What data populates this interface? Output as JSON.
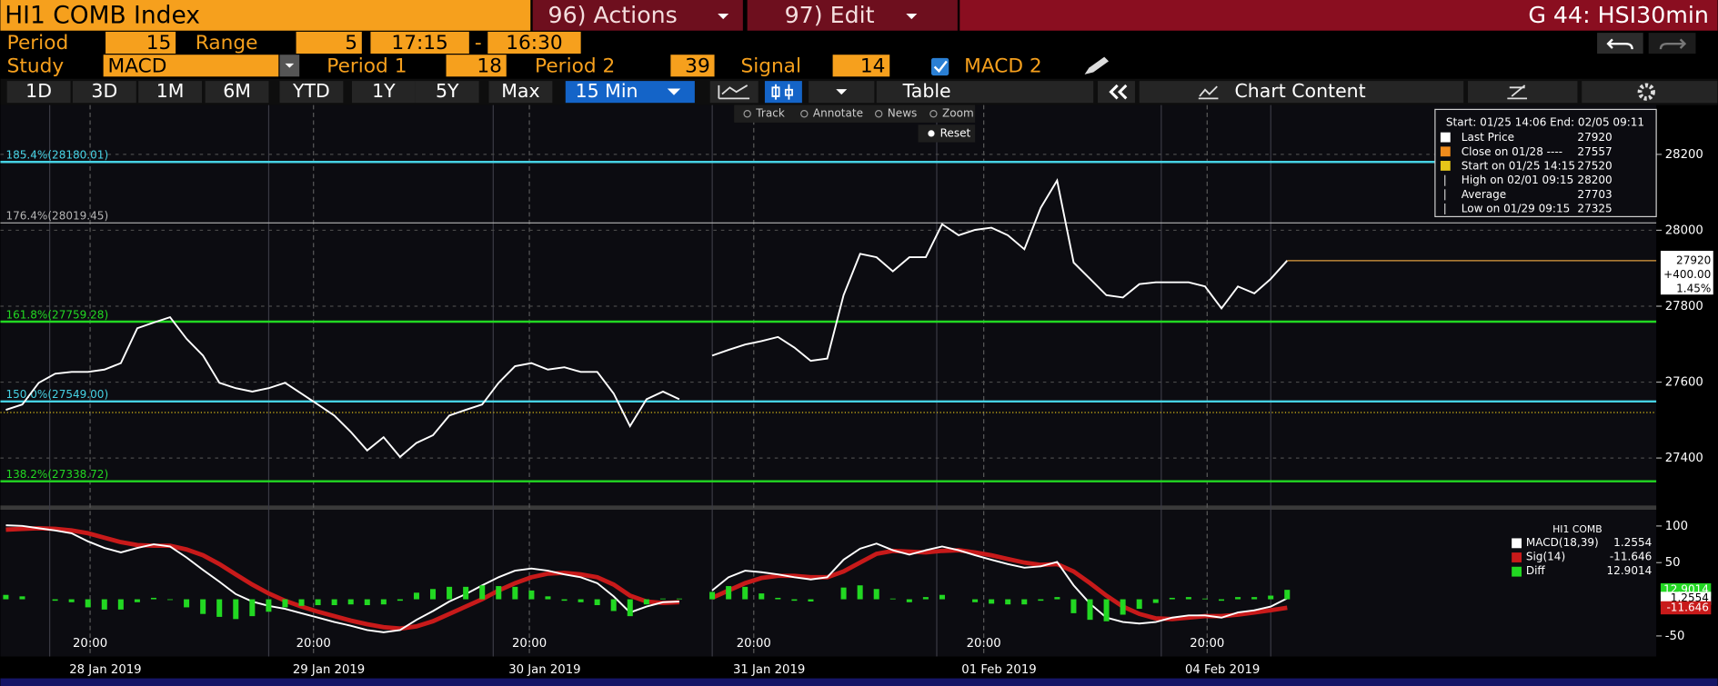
{
  "header": {
    "security": "HI1 COMB Index",
    "actions": "96) Actions",
    "edit": "97) Edit",
    "page": "G 44: HSI30min"
  },
  "settings": {
    "period_label": "Period",
    "period": "15",
    "range_label": "Range",
    "range": "5",
    "start_time": "17:15",
    "dash": "-",
    "end_time": "16:30",
    "study_label": "Study",
    "study": "MACD",
    "period1_label": "Period 1",
    "period1": "18",
    "period2_label": "Period 2",
    "period2": "39",
    "signal_label": "Signal",
    "signal": "14",
    "macd2": "MACD 2"
  },
  "tabs": [
    "1D",
    "3D",
    "1M",
    "6M",
    "YTD",
    "1Y",
    "5Y",
    "Max"
  ],
  "interval": "15 Min",
  "table_button": "Table",
  "chart_content": "Chart Content",
  "chart_tools": [
    "Track",
    "Annotate",
    "News",
    "Zoom"
  ],
  "reset": "Reset",
  "price_legend": {
    "title": "Start: 01/25 14:06 End: 02/05 09:11",
    "items": [
      {
        "label": "Last Price",
        "value": "27920",
        "color": "#ffffff"
      },
      {
        "label": "Close on 01/28 ----",
        "value": "27557",
        "color": "#f08c1c"
      },
      {
        "label": "Start on 01/25 14:15",
        "value": "27520",
        "color": "#e6c619"
      },
      {
        "label": "High on 02/01 09:15",
        "value": "28200"
      },
      {
        "label": "Average",
        "value": "27703"
      },
      {
        "label": "Low on 01/29 09:15",
        "value": "27325"
      }
    ]
  },
  "chart_data": [
    {
      "type": "line",
      "color": "#ffffff",
      "values": [
        27527,
        27541,
        27598,
        27622,
        27627,
        27627,
        27633,
        27650,
        27742,
        27757,
        27771,
        27714,
        27670,
        27598,
        27584,
        27575,
        27584,
        27598,
        27570,
        27541,
        27512,
        27469,
        27420,
        27455,
        27403,
        27440,
        27460,
        27512,
        27527,
        27541,
        27598,
        27642,
        27650,
        27633,
        27639,
        27627,
        27627,
        27570,
        27484,
        27555,
        27575,
        27555,
        null,
        27670,
        27685,
        27699,
        27708,
        27719,
        27691,
        27656,
        27662,
        27829,
        27938,
        27929,
        27892,
        27929,
        27929,
        28016,
        27987,
        28001,
        28007,
        27987,
        27950,
        28059,
        28131,
        27915,
        27872,
        27829,
        27823,
        27858,
        27863,
        27863,
        27863,
        27852,
        27794,
        27852,
        27834,
        27872,
        27920
      ],
      "ylim": [
        27275,
        28330
      ],
      "yticks": [
        27400,
        27600,
        27800,
        28000,
        28200
      ],
      "grid": true,
      "xlim": [
        -0.33,
        100.47
      ],
      "xticks": [
        {
          "value": 5.13,
          "label": "20:00"
        },
        {
          "value": 18.73,
          "label": "20:00"
        },
        {
          "value": 31.87,
          "label": "20:00"
        },
        {
          "value": 45.53,
          "label": "20:00"
        },
        {
          "value": 59.53,
          "label": "20:00"
        },
        {
          "value": 73.13,
          "label": "20:00"
        }
      ],
      "xtick_dates": [
        "28 Jan 2019",
        "29 Jan 2019",
        "30 Jan 2019",
        "31 Jan 2019",
        "01 Feb 2019",
        "04 Feb 2019"
      ],
      "levels": [
        {
          "label": "185.4%(28180.01)",
          "value": 28180.01,
          "color": "#46d2e4"
        },
        {
          "label": "176.4%(28019.45)",
          "value": 28019.45,
          "color": "#b4b4b4"
        },
        {
          "label": "161.8%(27759.28)",
          "value": 27759.28,
          "color": "#22d822"
        },
        {
          "label": "150.0%(27549.00)",
          "value": 27549.0,
          "color": "#46d2e4"
        },
        {
          "label": "138.2%(27338.72)",
          "value": 27338.72,
          "color": "#22d822"
        }
      ],
      "start_value": 27520,
      "last_value": 27920,
      "last_labels": [
        "27920",
        "+400.00",
        "1.45%"
      ]
    },
    {
      "type": "macd",
      "title": "HI1 COMB",
      "ylim": [
        -78,
        122
      ],
      "yticks": [
        -50,
        50,
        100
      ],
      "xlim": [
        -0.33,
        100.47
      ],
      "series": [
        {
          "name": "Sig(14)",
          "color": "#c81a1a",
          "legend_value": "-11.646",
          "values": [
            95,
            96,
            97,
            96,
            94,
            90,
            84,
            78,
            74,
            73,
            73,
            68,
            60,
            48,
            34,
            20,
            8,
            -2,
            -10,
            -17,
            -23,
            -29,
            -34,
            -38,
            -40,
            -37,
            -30,
            -20,
            -10,
            0,
            12,
            22,
            30,
            35,
            36,
            34,
            30,
            20,
            5,
            -3,
            -5,
            -4,
            null,
            2,
            12,
            22,
            29,
            32,
            32,
            30,
            30,
            38,
            50,
            62,
            66,
            65,
            64,
            66,
            67,
            64,
            60,
            55,
            50,
            47,
            48,
            38,
            22,
            5,
            -10,
            -20,
            -26,
            -27,
            -25,
            -23,
            -23,
            -21,
            -18,
            -15,
            -11.646
          ]
        },
        {
          "name": "MACD(18,39)",
          "color": "#ffffff",
          "legend_value": "1.2554",
          "values": [
            101,
            100,
            97,
            94,
            90,
            79,
            70,
            64,
            70,
            75,
            72,
            57,
            40,
            24,
            7,
            -3,
            -9,
            -13,
            -19,
            -25,
            -31,
            -36,
            -42,
            -45,
            -42,
            -28,
            -16,
            -3,
            7,
            19,
            30,
            39,
            42,
            39,
            34,
            30,
            22,
            4,
            -18,
            -10,
            -4,
            -3,
            null,
            12,
            30,
            39,
            37,
            34,
            30,
            27,
            30,
            54,
            69,
            76,
            67,
            61,
            67,
            72,
            67,
            60,
            54,
            48,
            43,
            45,
            51,
            19,
            -6,
            -25,
            -31,
            -33,
            -31,
            -25,
            -22,
            -22,
            -25,
            -18,
            -15,
            -10,
            1.2554
          ]
        },
        {
          "name": "Diff",
          "color": "#22d822",
          "style": "bar",
          "legend_value": "12.9014",
          "values": [
            6,
            4,
            0,
            -2,
            -4,
            -11,
            -14,
            -14,
            -4,
            2,
            -1,
            -11,
            -20,
            -24,
            -27,
            -23,
            -17,
            -11,
            -9,
            -8,
            -8,
            -7,
            -8,
            -7,
            -2,
            9,
            14,
            17,
            17,
            19,
            18,
            17,
            12,
            4,
            -2,
            -4,
            -8,
            -16,
            -23,
            -7,
            1,
            1,
            null,
            10,
            18,
            17,
            8,
            2,
            -2,
            -3,
            0,
            16,
            19,
            14,
            1,
            -4,
            3,
            6,
            0,
            -4,
            -6,
            -7,
            -7,
            -2,
            3,
            -19,
            -28,
            -30,
            -21,
            -13,
            -5,
            2,
            3,
            1,
            -2,
            3,
            3,
            5,
            12.9014
          ]
        }
      ]
    }
  ]
}
